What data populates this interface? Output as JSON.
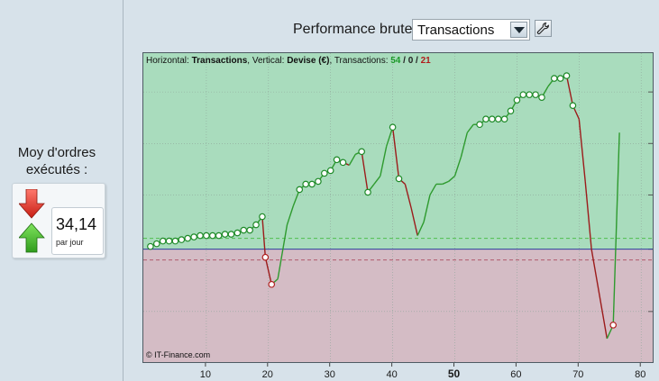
{
  "left_panel": {
    "title": "Moy d'ordres exécutés :",
    "value": "34,14",
    "unit": "par jour"
  },
  "header": {
    "label": "Performance brute",
    "selected": "Transactions",
    "settings_icon": "wrench-icon"
  },
  "chart_info": {
    "prefix": "Horizontal: ",
    "horizontal": "Transactions",
    "mid": ", Vertical: ",
    "vertical": "Devise (€)",
    "tx_label": ", Transactions: ",
    "wins": "54",
    "sep1": " / ",
    "neutral": "0",
    "sep2": " / ",
    "losses": "21"
  },
  "copyright": "© IT-Finance.com",
  "colors": {
    "profit_bg": "#a9dcbd",
    "loss_bg": "#d4bcc5",
    "up_line": "#2e9a2e",
    "down_line": "#9c1b1b"
  },
  "chart_data": {
    "type": "line",
    "xlim": [
      0,
      82
    ],
    "ylim": [
      -42,
      72
    ],
    "zero": 0,
    "upper_ref": 4,
    "lower_ref": -4,
    "x_ticks": [
      10,
      20,
      30,
      40,
      50,
      60,
      70,
      80
    ],
    "x_major_tick": 50,
    "y_grid": [
      -42,
      -23,
      0,
      20,
      39,
      58
    ],
    "points": [
      [
        1,
        1
      ],
      [
        2,
        2
      ],
      [
        3,
        3
      ],
      [
        4,
        3
      ],
      [
        5,
        3
      ],
      [
        6,
        3.5
      ],
      [
        7,
        4
      ],
      [
        8,
        4.5
      ],
      [
        9,
        5
      ],
      [
        10,
        5
      ],
      [
        11,
        5
      ],
      [
        12,
        5
      ],
      [
        13,
        5.5
      ],
      [
        14,
        5.5
      ],
      [
        15,
        6
      ],
      [
        16,
        7
      ],
      [
        17,
        7
      ],
      [
        18,
        9
      ],
      [
        19,
        12
      ],
      [
        19.5,
        -3
      ],
      [
        20.5,
        -13
      ],
      [
        21.5,
        -11
      ],
      [
        23,
        9
      ],
      [
        24,
        16
      ],
      [
        25,
        22
      ],
      [
        26,
        24
      ],
      [
        27,
        24
      ],
      [
        28,
        25
      ],
      [
        29,
        28
      ],
      [
        30,
        29
      ],
      [
        31,
        33
      ],
      [
        32,
        32
      ],
      [
        33,
        31
      ],
      [
        34,
        35
      ],
      [
        35,
        36
      ],
      [
        36,
        21
      ],
      [
        37,
        24
      ],
      [
        38,
        27
      ],
      [
        39,
        38
      ],
      [
        40,
        45
      ],
      [
        41,
        26
      ],
      [
        42,
        24
      ],
      [
        43,
        15
      ],
      [
        44,
        5
      ],
      [
        45,
        10
      ],
      [
        46,
        20
      ],
      [
        47,
        24
      ],
      [
        48,
        24
      ],
      [
        49,
        25
      ],
      [
        50,
        27
      ],
      [
        51,
        34
      ],
      [
        52,
        43
      ],
      [
        53,
        46
      ],
      [
        54,
        46
      ],
      [
        55,
        48
      ],
      [
        56,
        48
      ],
      [
        57,
        48
      ],
      [
        58,
        48
      ],
      [
        59,
        51
      ],
      [
        60,
        55
      ],
      [
        61,
        57
      ],
      [
        62,
        57
      ],
      [
        63,
        57
      ],
      [
        64,
        56
      ],
      [
        65,
        60
      ],
      [
        66,
        63
      ],
      [
        67,
        63
      ],
      [
        68,
        64
      ],
      [
        69,
        53
      ],
      [
        70,
        48
      ],
      [
        71,
        25
      ],
      [
        72,
        0
      ],
      [
        74.5,
        -33
      ],
      [
        75.5,
        -28
      ],
      [
        76.5,
        43
      ]
    ],
    "markers": [
      1,
      2,
      3,
      4,
      5,
      6,
      7,
      8,
      9,
      10,
      11,
      12,
      13,
      14,
      15,
      16,
      17,
      18,
      19,
      20,
      21,
      25,
      26,
      27,
      28,
      29,
      30,
      31,
      32,
      35,
      36,
      40,
      41,
      54,
      55,
      56,
      57,
      58,
      59,
      60,
      61,
      62,
      63,
      64,
      66,
      67,
      68,
      69,
      74
    ],
    "loss_markers": [
      20,
      21,
      74
    ]
  }
}
